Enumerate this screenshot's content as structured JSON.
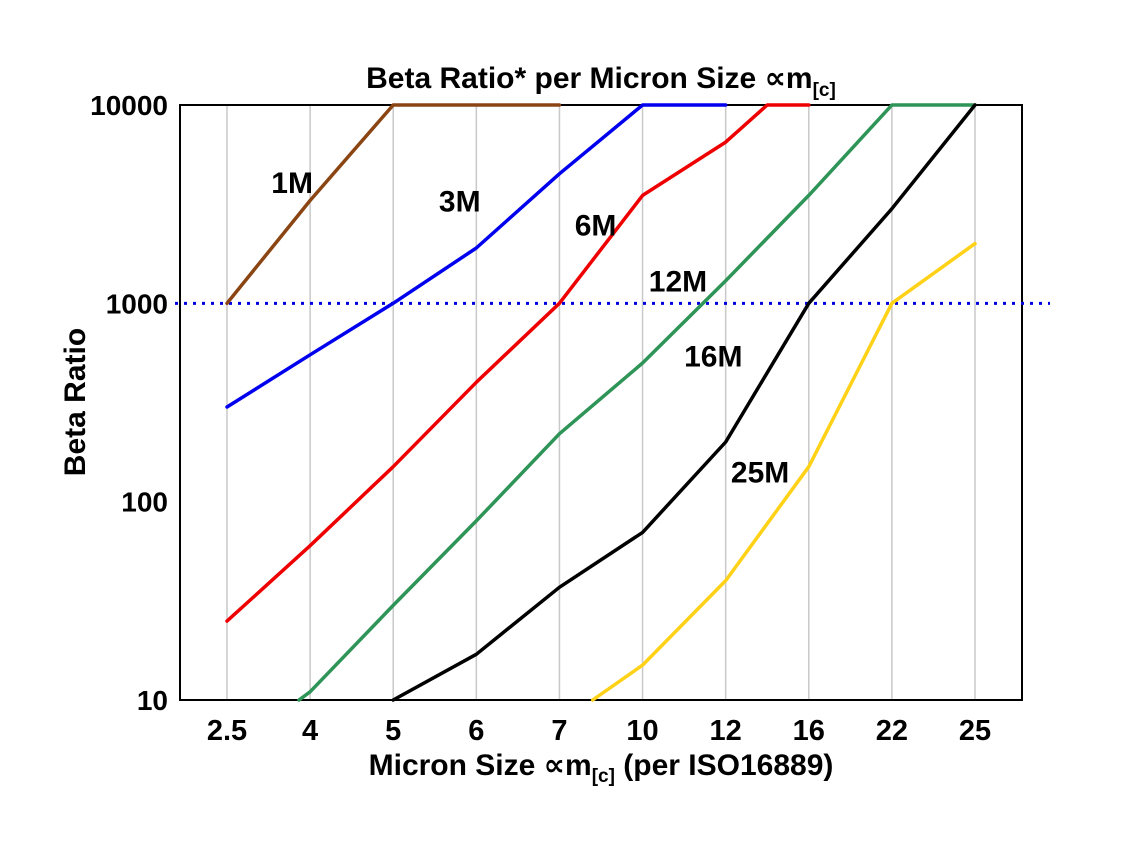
{
  "chart_data": {
    "type": "line",
    "title": {
      "text": "Beta Ratio* per Micron Size ",
      "symbol": "∝m",
      "subscript": "[c]"
    },
    "xlabel": {
      "prefix": "Micron Size ",
      "symbol": "∝m",
      "subscript": "[c]",
      "suffix": " (per ISO16889)"
    },
    "ylabel": "Beta Ratio",
    "categories": [
      2.5,
      4,
      5,
      6,
      7,
      10,
      12,
      16,
      22,
      25
    ],
    "x_ticks": [
      "2.5",
      "4",
      "5",
      "6",
      "7",
      "10",
      "12",
      "16",
      "22",
      "25"
    ],
    "y_ticks": [
      10000,
      1000,
      100,
      10
    ],
    "y_scale": "log",
    "ylim": [
      10,
      10000
    ],
    "grid": "vertical",
    "grid_color": "#c9c9c9",
    "frame_color": "#000000",
    "reference_line": {
      "y": 1000,
      "color": "#0000dd",
      "style": "dotted"
    },
    "series": [
      {
        "name": "1M",
        "color": "#8b4513",
        "label_pos": [
          3.3,
          3600
        ],
        "points": [
          [
            2.5,
            1000
          ],
          [
            4,
            3300
          ],
          [
            5,
            10000
          ],
          [
            7,
            10000
          ]
        ]
      },
      {
        "name": "3M",
        "color": "#0000ee",
        "label_pos": [
          5.55,
          2900
        ],
        "points": [
          [
            2.5,
            300
          ],
          [
            4,
            550
          ],
          [
            5,
            1000
          ],
          [
            6,
            1900
          ],
          [
            7,
            4500
          ],
          [
            10,
            10000
          ],
          [
            12,
            10000
          ]
        ]
      },
      {
        "name": "6M",
        "color": "#ee0000",
        "label_pos": [
          7.55,
          2200
        ],
        "points": [
          [
            2.5,
            25
          ],
          [
            4,
            60
          ],
          [
            5,
            150
          ],
          [
            6,
            400
          ],
          [
            7,
            1000
          ],
          [
            10,
            3500
          ],
          [
            12,
            6500
          ],
          [
            14,
            10000
          ],
          [
            16,
            10000
          ]
        ]
      },
      {
        "name": "12M",
        "color": "#2e9457",
        "label_pos": [
          10.15,
          1150
        ],
        "points": [
          [
            3.8,
            10
          ],
          [
            4,
            11
          ],
          [
            5,
            30
          ],
          [
            6,
            80
          ],
          [
            7,
            220
          ],
          [
            10,
            500
          ],
          [
            12,
            1300
          ],
          [
            16,
            3500
          ],
          [
            22,
            10000
          ],
          [
            25,
            10000
          ]
        ]
      },
      {
        "name": "16M",
        "color": "#000000",
        "label_pos": [
          11.0,
          480
        ],
        "points": [
          [
            5,
            10
          ],
          [
            6,
            17
          ],
          [
            7,
            37
          ],
          [
            10,
            70
          ],
          [
            12,
            200
          ],
          [
            16,
            1000
          ],
          [
            22,
            3000
          ],
          [
            25,
            10000
          ]
        ]
      },
      {
        "name": "25M",
        "color": "#ffd117",
        "label_pos": [
          12.25,
          125
        ],
        "points": [
          [
            8.2,
            10
          ],
          [
            10,
            15
          ],
          [
            12,
            40
          ],
          [
            16,
            150
          ],
          [
            22,
            1000
          ],
          [
            25,
            2000
          ]
        ]
      }
    ]
  }
}
